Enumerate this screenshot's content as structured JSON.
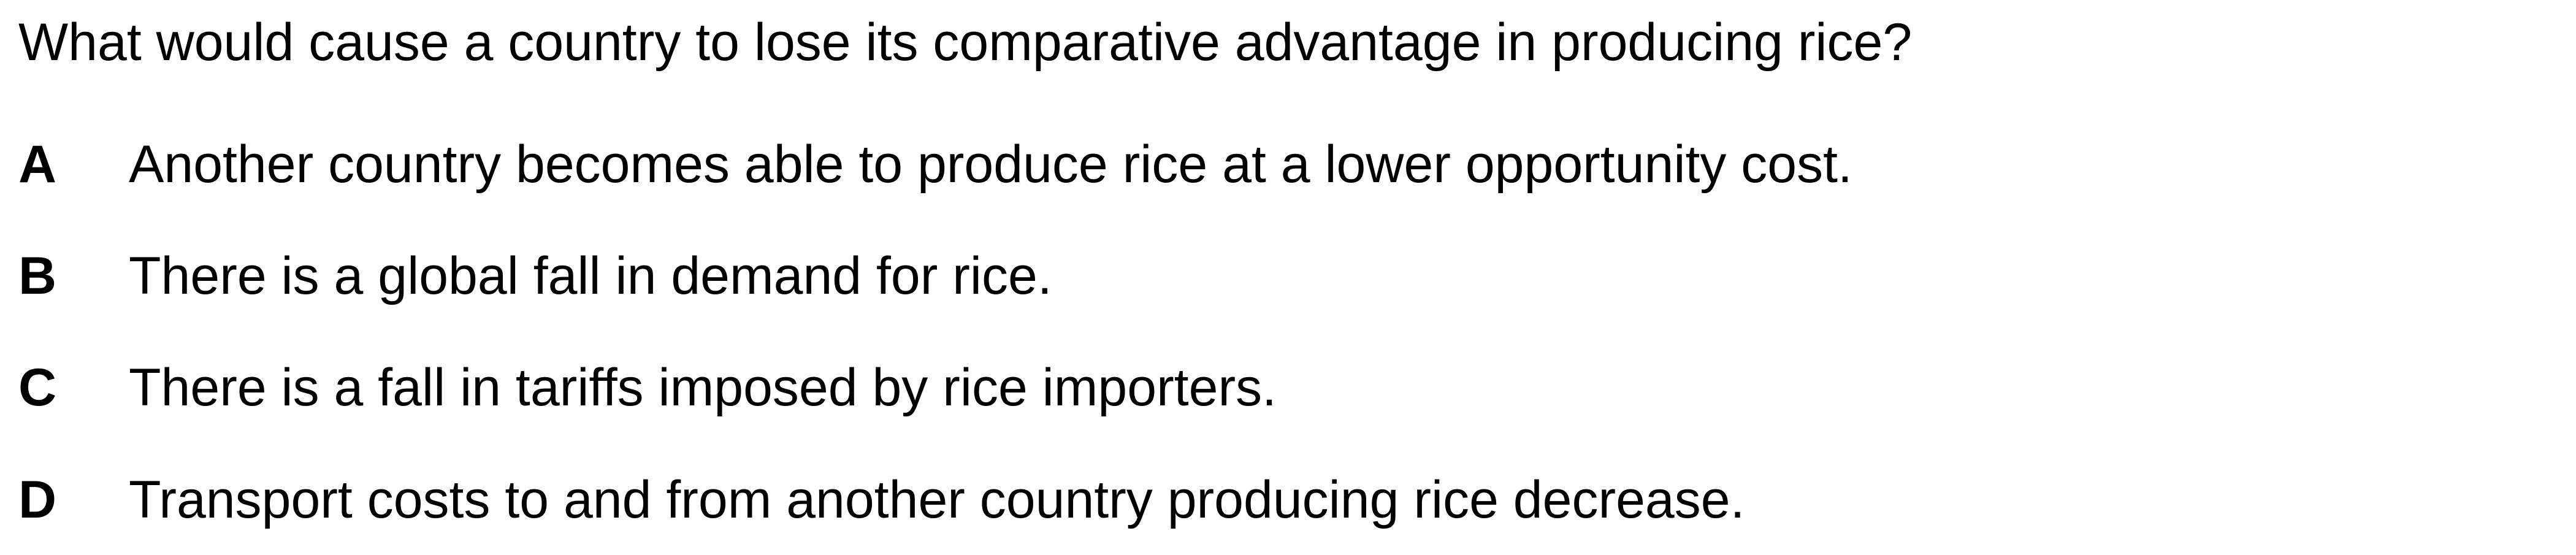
{
  "question": "What would cause a country to lose its comparative advantage in producing rice?",
  "options": [
    {
      "letter": "A",
      "text": "Another country becomes able to produce rice at a lower opportunity cost."
    },
    {
      "letter": "B",
      "text": "There is a global fall in demand for rice."
    },
    {
      "letter": "C",
      "text": "There is a fall in tariffs imposed by rice importers."
    },
    {
      "letter": "D",
      "text": "Transport costs to and from another country producing rice decrease."
    }
  ]
}
